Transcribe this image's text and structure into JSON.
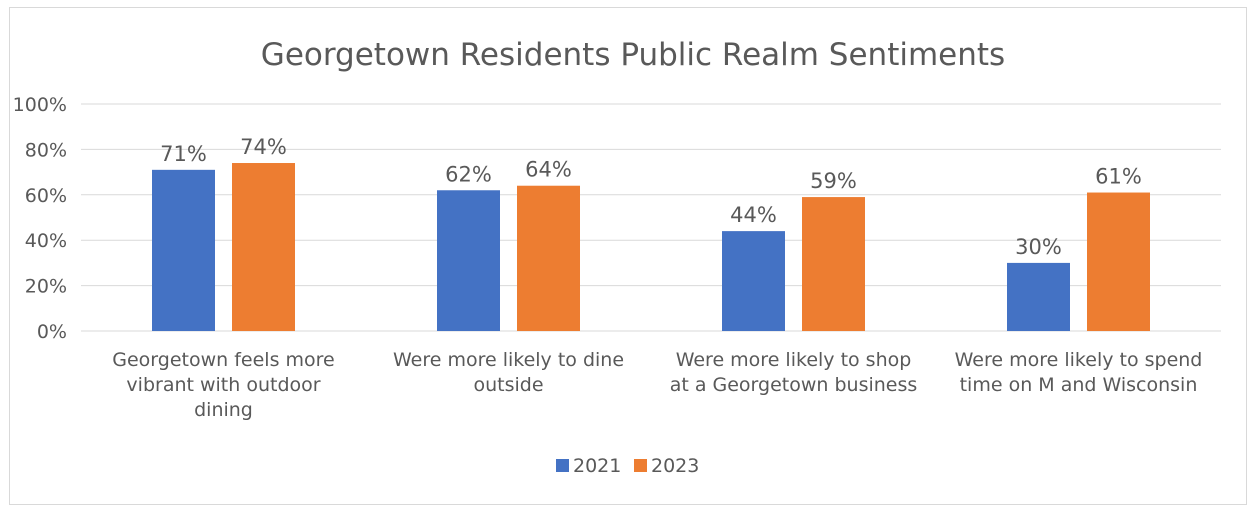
{
  "chart_data": {
    "type": "bar",
    "title": "Georgetown Residents Public Realm Sentiments",
    "categories": [
      [
        "Georgetown feels more",
        "vibrant with outdoor",
        "dining"
      ],
      [
        "Were more likely to dine",
        "outside"
      ],
      [
        "Were more likely to shop",
        "at a Georgetown business"
      ],
      [
        "Were more likely to spend",
        "time on M and Wisconsin"
      ]
    ],
    "series": [
      {
        "name": "2021",
        "color": "#4472c4",
        "values": [
          71,
          62,
          44,
          30
        ],
        "labels": [
          "71%",
          "62%",
          "44%",
          "30%"
        ]
      },
      {
        "name": "2023",
        "color": "#ed7d31",
        "values": [
          74,
          64,
          59,
          61
        ],
        "labels": [
          "74%",
          "64%",
          "59%",
          "61%"
        ]
      }
    ],
    "y_ticks": [
      "0%",
      "20%",
      "40%",
      "60%",
      "80%",
      "100%"
    ],
    "ylim": [
      0,
      100
    ],
    "xlabel": "",
    "ylabel": "",
    "grid": true,
    "gridline_color": "#d9d9d9",
    "legend_position": "bottom"
  }
}
